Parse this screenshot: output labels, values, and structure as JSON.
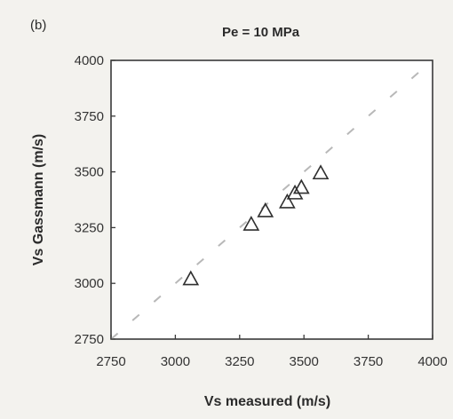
{
  "chart_data": {
    "type": "scatter",
    "panel_label": "(b)",
    "title": "Pe = 10 MPa",
    "xlabel": "Vs measured  (m/s)",
    "ylabel": "Vs Gassmann  (m/s)",
    "xlim": [
      2750,
      4000
    ],
    "ylim": [
      2750,
      4000
    ],
    "xticks": [
      2750,
      3000,
      3250,
      3500,
      3750,
      4000
    ],
    "yticks": [
      2750,
      3000,
      3250,
      3500,
      3750,
      4000
    ],
    "marker": "open-triangle",
    "reference_line": "1:1 dashed",
    "grid": false,
    "points": [
      {
        "x": 3060,
        "y": 3020
      },
      {
        "x": 3295,
        "y": 3265
      },
      {
        "x": 3350,
        "y": 3325
      },
      {
        "x": 3435,
        "y": 3365
      },
      {
        "x": 3465,
        "y": 3405
      },
      {
        "x": 3490,
        "y": 3430
      },
      {
        "x": 3565,
        "y": 3495
      }
    ]
  }
}
